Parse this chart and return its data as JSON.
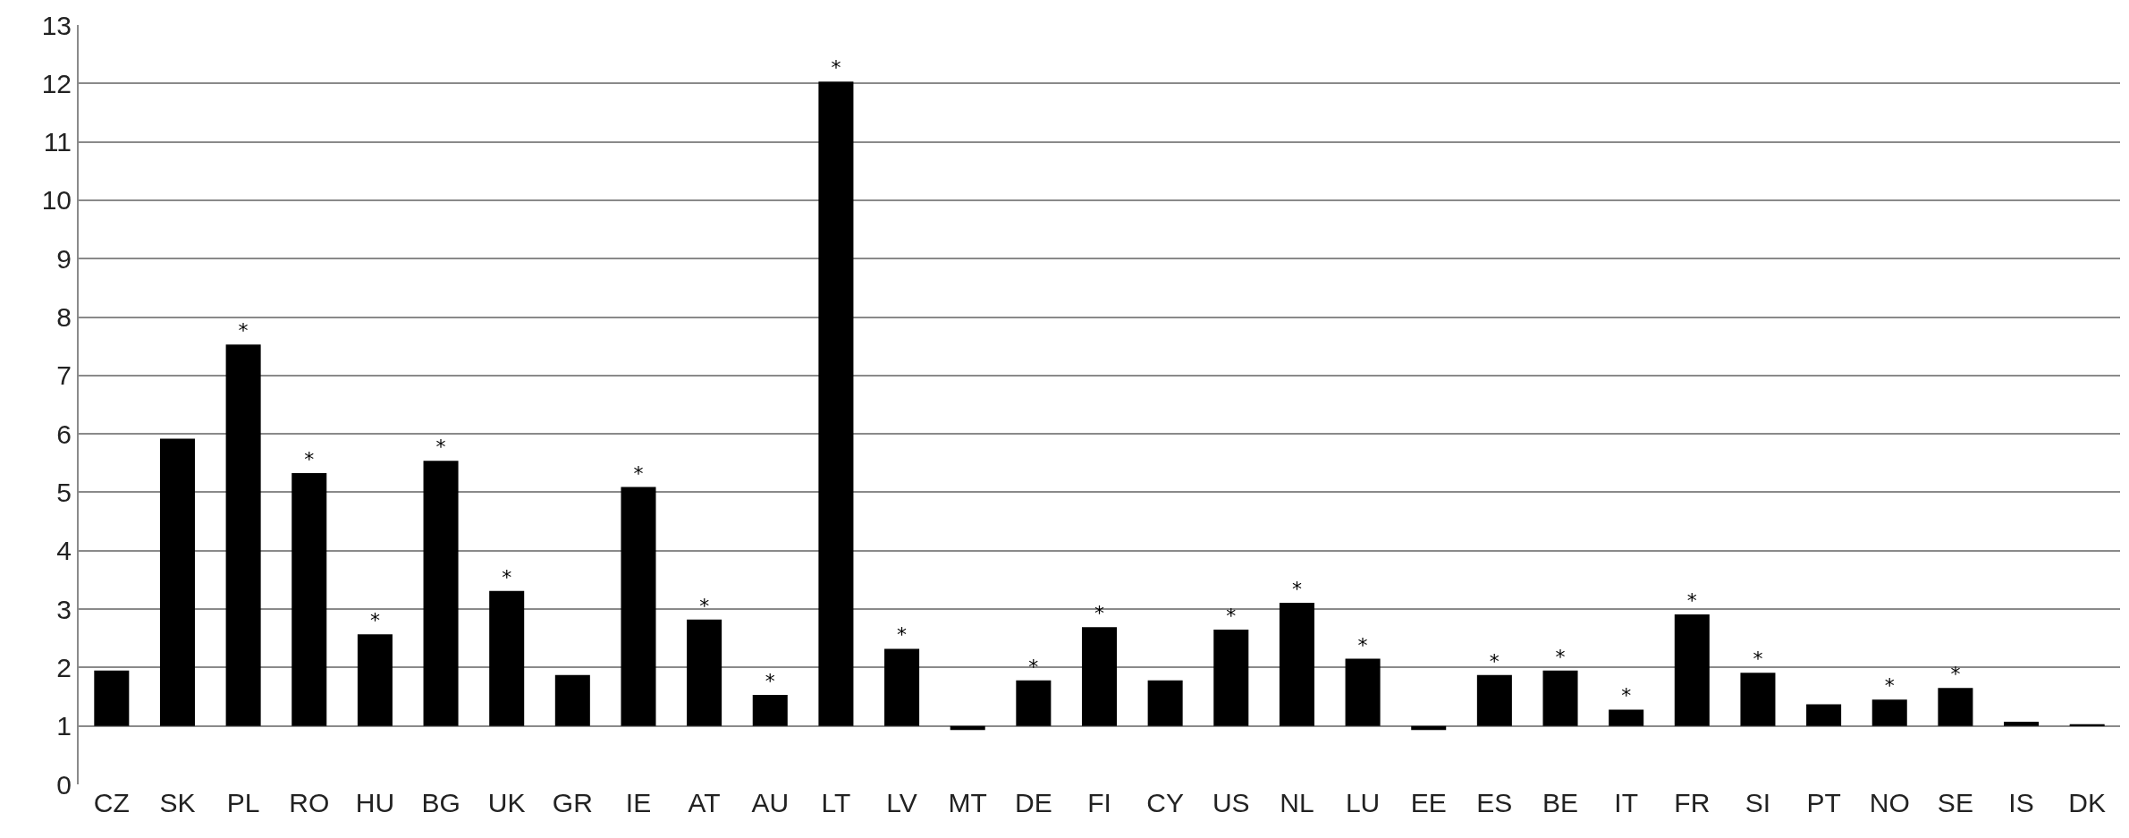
{
  "chart_data": {
    "type": "bar",
    "categories": [
      "CZ",
      "SK",
      "PL",
      "RO",
      "HU",
      "BG",
      "UK",
      "GR",
      "IE",
      "AT",
      "AU",
      "LT",
      "LV",
      "MT",
      "DE",
      "FI",
      "CY",
      "US",
      "NL",
      "LU",
      "EE",
      "ES",
      "BE",
      "IT",
      "FR",
      "SI",
      "PT",
      "NO",
      "SE",
      "IS",
      "DK"
    ],
    "base": [
      1,
      1,
      1,
      1,
      1,
      1,
      1,
      1,
      1,
      1,
      1,
      1,
      1,
      1,
      1,
      1,
      1,
      1,
      1,
      1,
      1,
      1,
      1,
      1,
      1,
      1,
      1,
      1,
      1,
      1,
      1
    ],
    "values": [
      0.95,
      4.92,
      6.53,
      4.33,
      1.57,
      4.54,
      2.31,
      0.87,
      4.09,
      1.82,
      0.53,
      11.03,
      1.32,
      -0.07,
      0.78,
      1.69,
      0.78,
      1.65,
      2.11,
      1.15,
      -0.07,
      0.87,
      0.95,
      0.28,
      1.91,
      0.91,
      0.37,
      0.45,
      0.65,
      0.07,
      0.03
    ],
    "value_labels": [
      null,
      null,
      "*",
      "*",
      "*",
      "*",
      "*",
      null,
      "*",
      "*",
      "*",
      "*",
      "*",
      null,
      "*",
      "*",
      null,
      "*",
      "*",
      "*",
      null,
      "*",
      "*",
      "*",
      "*",
      "*",
      null,
      "*",
      "*",
      null,
      null
    ],
    "color": "#000000",
    "ylim": [
      0,
      13
    ],
    "yticks": [
      0,
      1,
      2,
      3,
      4,
      5,
      6,
      7,
      8,
      9,
      10,
      11,
      12,
      13
    ],
    "grid": "y"
  }
}
